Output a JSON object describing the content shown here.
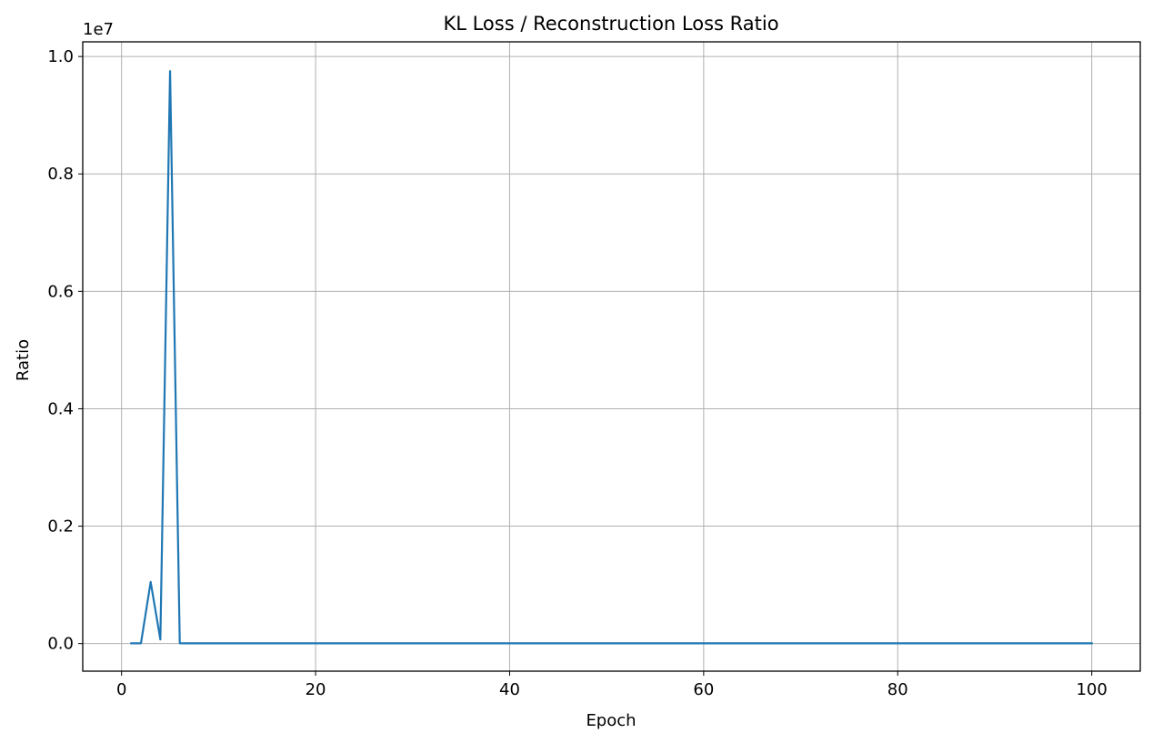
{
  "chart_data": {
    "type": "line",
    "title": "KL Loss / Reconstruction Loss Ratio",
    "xlabel": "Epoch",
    "ylabel": "Ratio",
    "y_offset_label": "1e7",
    "xlim": [
      -4.0,
      105.0
    ],
    "ylim": [
      -470000,
      10250000
    ],
    "x_ticks": [
      0,
      20,
      40,
      60,
      80,
      100
    ],
    "x_tick_labels": [
      "0",
      "20",
      "40",
      "60",
      "80",
      "100"
    ],
    "y_ticks": [
      0,
      2000000,
      4000000,
      6000000,
      8000000,
      10000000
    ],
    "y_tick_labels": [
      "0.0",
      "0.2",
      "0.4",
      "0.6",
      "0.8",
      "1.0"
    ],
    "grid": true,
    "series": [
      {
        "color": "#1f77b4",
        "x": [
          1,
          2,
          3,
          4,
          5,
          6,
          7,
          8,
          9,
          10,
          11,
          12,
          13,
          14,
          15,
          16,
          17,
          18,
          19,
          20,
          21,
          22,
          23,
          24,
          25,
          26,
          27,
          28,
          29,
          30,
          31,
          32,
          33,
          34,
          35,
          36,
          37,
          38,
          39,
          40,
          41,
          42,
          43,
          44,
          45,
          46,
          47,
          48,
          49,
          50,
          51,
          52,
          53,
          54,
          55,
          56,
          57,
          58,
          59,
          60,
          61,
          62,
          63,
          64,
          65,
          66,
          67,
          68,
          69,
          70,
          71,
          72,
          73,
          74,
          75,
          76,
          77,
          78,
          79,
          80,
          81,
          82,
          83,
          84,
          85,
          86,
          87,
          88,
          89,
          90,
          91,
          92,
          93,
          94,
          95,
          96,
          97,
          98,
          99,
          100
        ],
        "y": [
          5000,
          5000,
          1050000,
          70000,
          9750000,
          5000,
          5000,
          5000,
          5000,
          5000,
          5000,
          5000,
          5000,
          5000,
          5000,
          5000,
          5000,
          5000,
          5000,
          5000,
          5000,
          5000,
          5000,
          5000,
          5000,
          5000,
          5000,
          5000,
          5000,
          5000,
          5000,
          5000,
          5000,
          5000,
          5000,
          5000,
          5000,
          5000,
          5000,
          5000,
          5000,
          5000,
          5000,
          5000,
          5000,
          5000,
          5000,
          5000,
          5000,
          5000,
          5000,
          5000,
          5000,
          5000,
          5000,
          5000,
          5000,
          5000,
          5000,
          5000,
          5000,
          5000,
          5000,
          5000,
          5000,
          5000,
          5000,
          5000,
          5000,
          5000,
          5000,
          5000,
          5000,
          5000,
          5000,
          5000,
          5000,
          5000,
          5000,
          5000,
          5000,
          5000,
          5000,
          5000,
          5000,
          5000,
          5000,
          5000,
          5000,
          5000,
          5000,
          5000,
          5000,
          5000,
          5000,
          5000,
          5000,
          5000,
          5000,
          5000
        ]
      }
    ]
  }
}
